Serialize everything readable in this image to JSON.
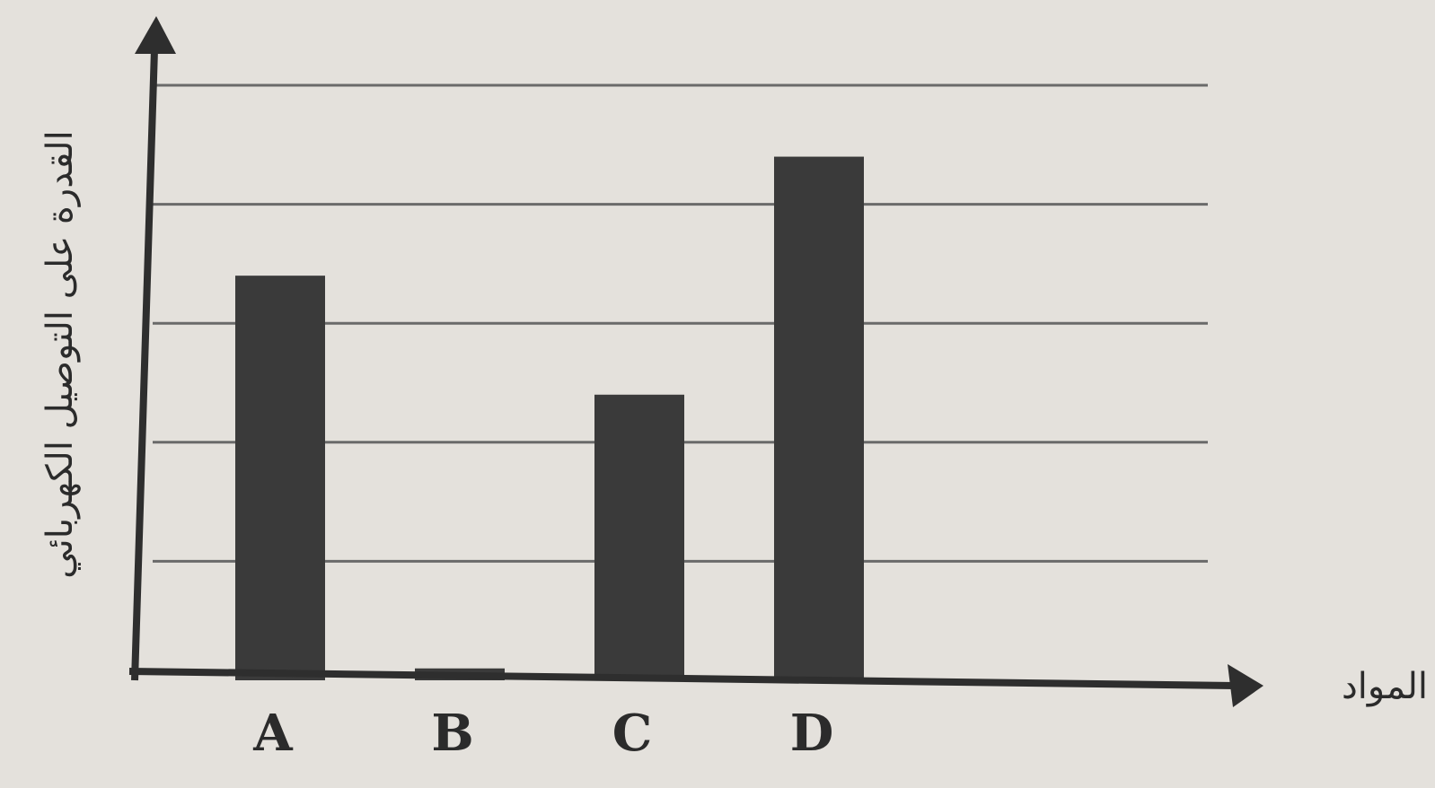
{
  "chart_data": {
    "type": "bar",
    "categories": [
      "A",
      "B",
      "C",
      "D"
    ],
    "values": [
      3.4,
      0.1,
      2.4,
      4.4
    ],
    "title": "",
    "xlabel": "المواد",
    "ylabel": "القدرة على التوصيل الكهربائي",
    "ylim": [
      0,
      5
    ],
    "yticks": [
      1,
      2,
      3,
      4,
      5
    ],
    "grid": true,
    "bar_color": "#3a3a3a",
    "grid_color": "#6a6a6a",
    "axis_color": "#2e2e2e"
  }
}
